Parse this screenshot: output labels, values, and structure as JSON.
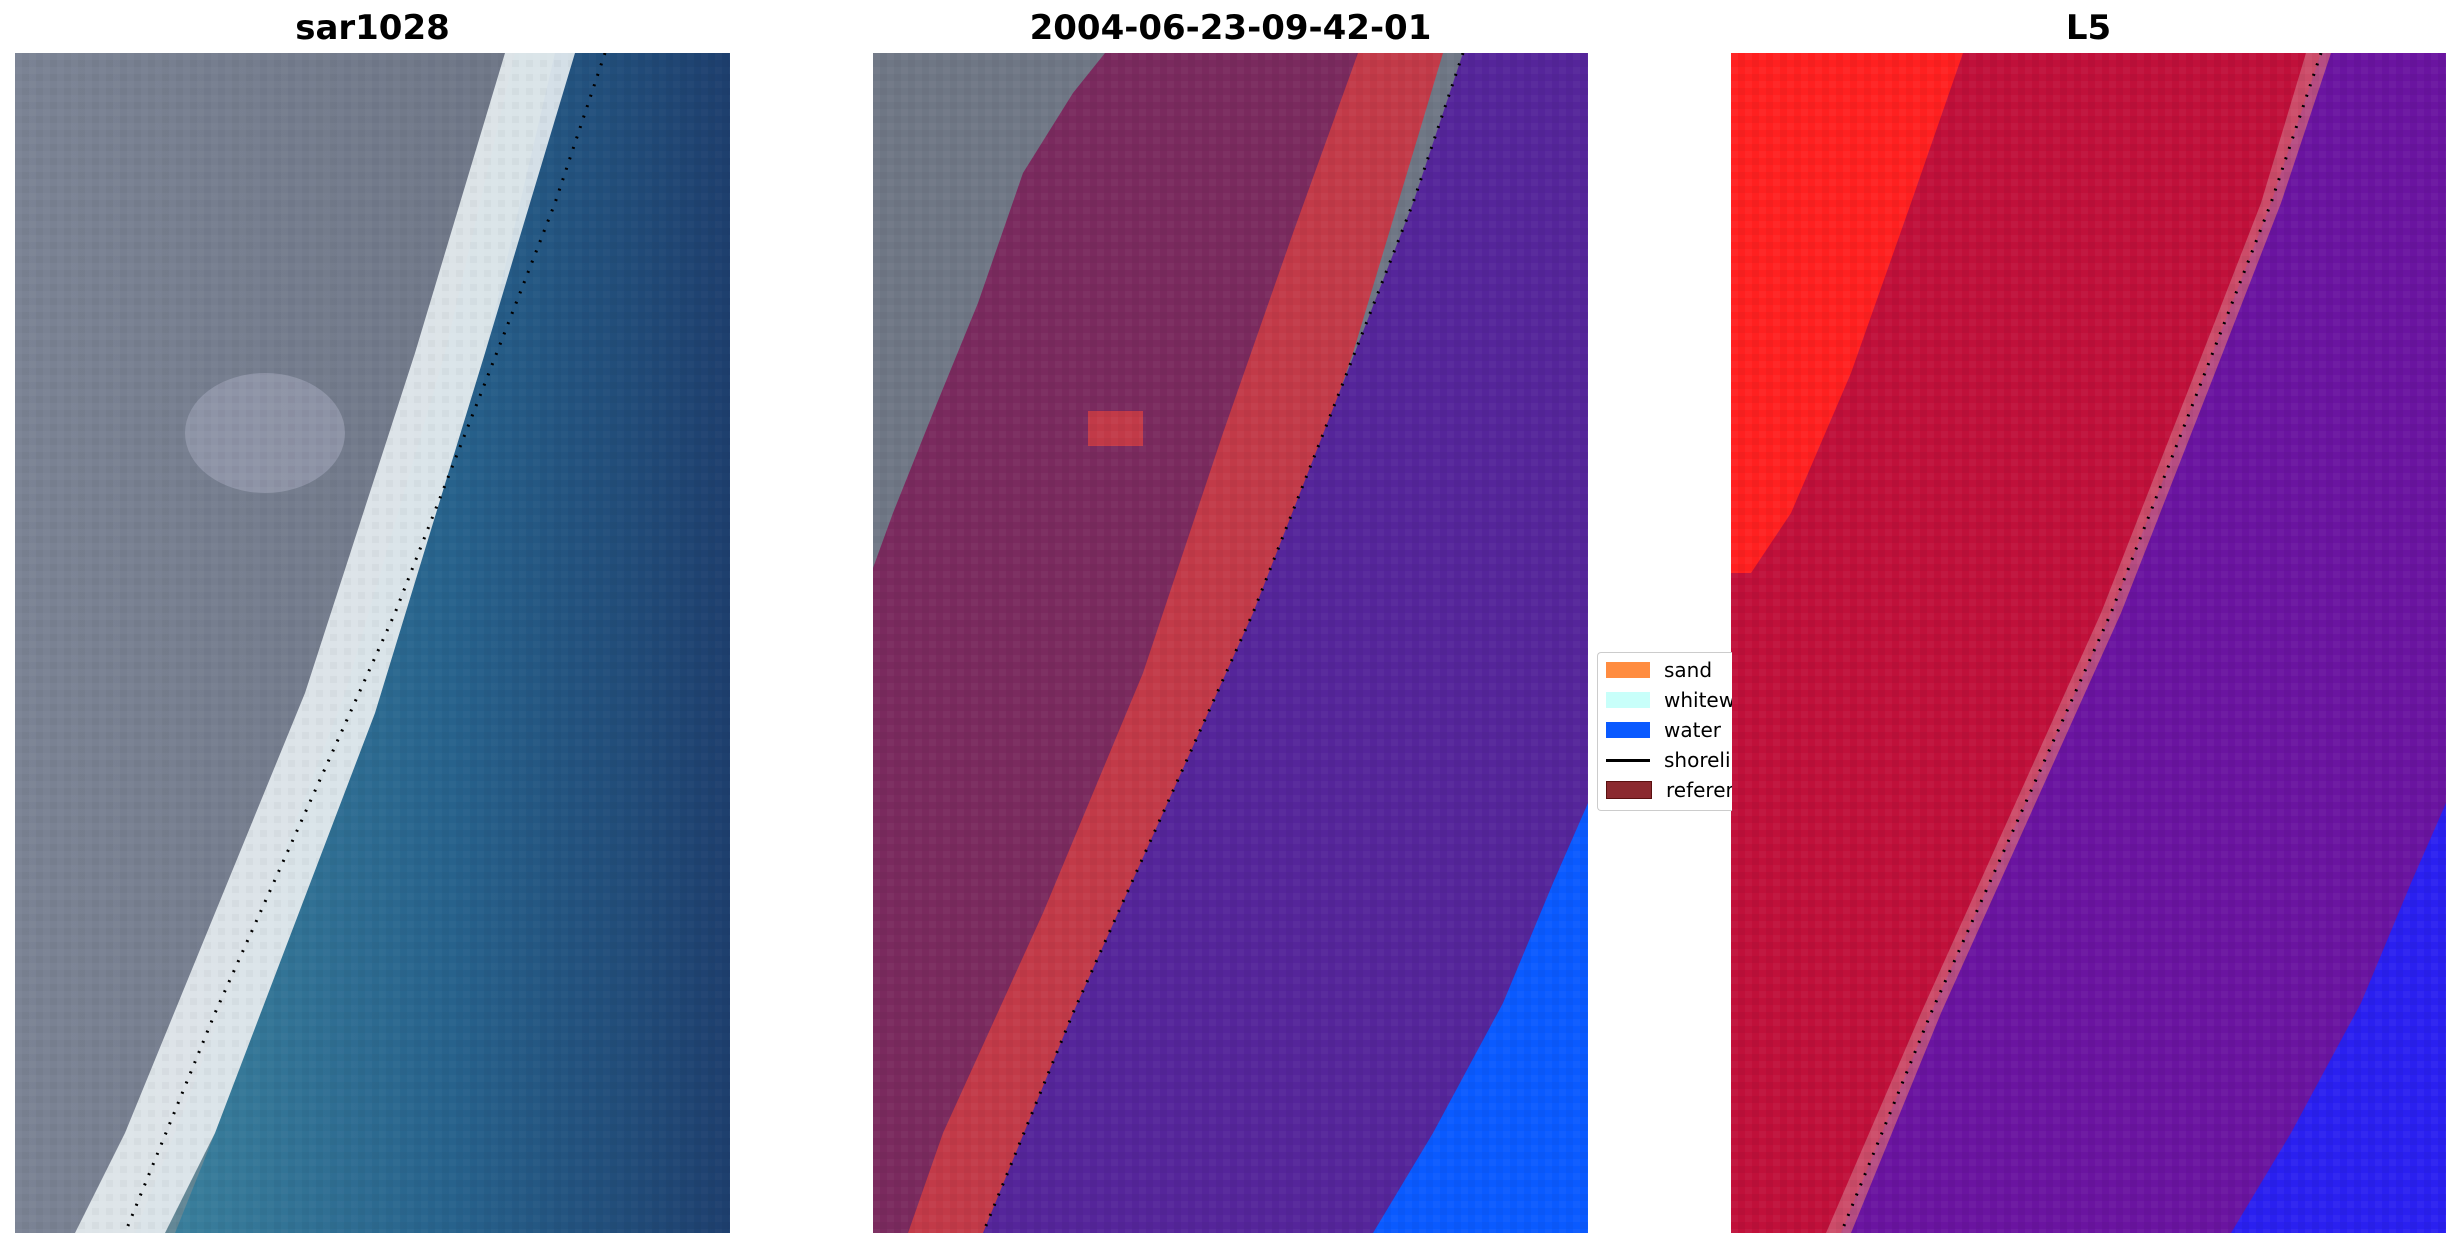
{
  "panels": [
    {
      "title": "sar1028"
    },
    {
      "title": "2004-06-23-09-42-01"
    },
    {
      "title": "L5"
    }
  ],
  "legend": {
    "items": [
      {
        "label": "sand",
        "color": "#ff8c40",
        "kind": "patch"
      },
      {
        "label": "whitewater",
        "color": "#c8fffa",
        "kind": "patch"
      },
      {
        "label": "water",
        "color": "#0a5aff",
        "kind": "patch"
      },
      {
        "label": "shoreline",
        "color": "#000000",
        "kind": "line"
      },
      {
        "label": "reference",
        "color": "#8b2a2f",
        "kind": "patch"
      }
    ]
  },
  "colors": {
    "land_rgb": "#6f7785",
    "whitewater_rgb": "#e8eef2",
    "water_rgb": "#2a6a8f",
    "land_class": "#7a2a5e",
    "sand_class": "#c23a48",
    "water_class": "#55259a",
    "deep_water_class": "#0a5aff",
    "red_index": "#ff2020",
    "crimson_index": "#c0103a",
    "purple_index": "#6a14a0",
    "blue_index": "#2020ff"
  }
}
